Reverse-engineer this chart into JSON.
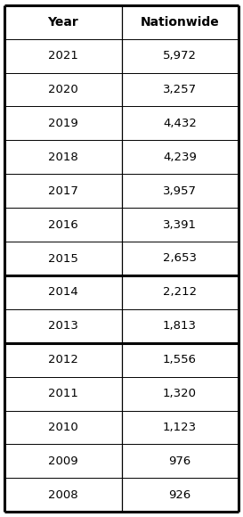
{
  "col_headers": [
    "Year",
    "Nationwide"
  ],
  "rows": [
    [
      "2021",
      "5,972"
    ],
    [
      "2020",
      "3,257"
    ],
    [
      "2019",
      "4,432"
    ],
    [
      "2018",
      "4,239"
    ],
    [
      "2017",
      "3,957"
    ],
    [
      "2016",
      "3,391"
    ],
    [
      "2015",
      "2,653"
    ],
    [
      "2014",
      "2,212"
    ],
    [
      "2013",
      "1,813"
    ],
    [
      "2012",
      "1,556"
    ],
    [
      "2011",
      "1,320"
    ],
    [
      "2010",
      "1,123"
    ],
    [
      "2009",
      "976"
    ],
    [
      "2008",
      "926"
    ]
  ],
  "thick_line_rows": [
    0,
    8,
    10
  ],
  "background_color": "#ffffff",
  "text_color": "#000000",
  "font_size": 9.5,
  "header_font_size": 10,
  "figsize": [
    2.73,
    5.8
  ],
  "dpi": 100
}
